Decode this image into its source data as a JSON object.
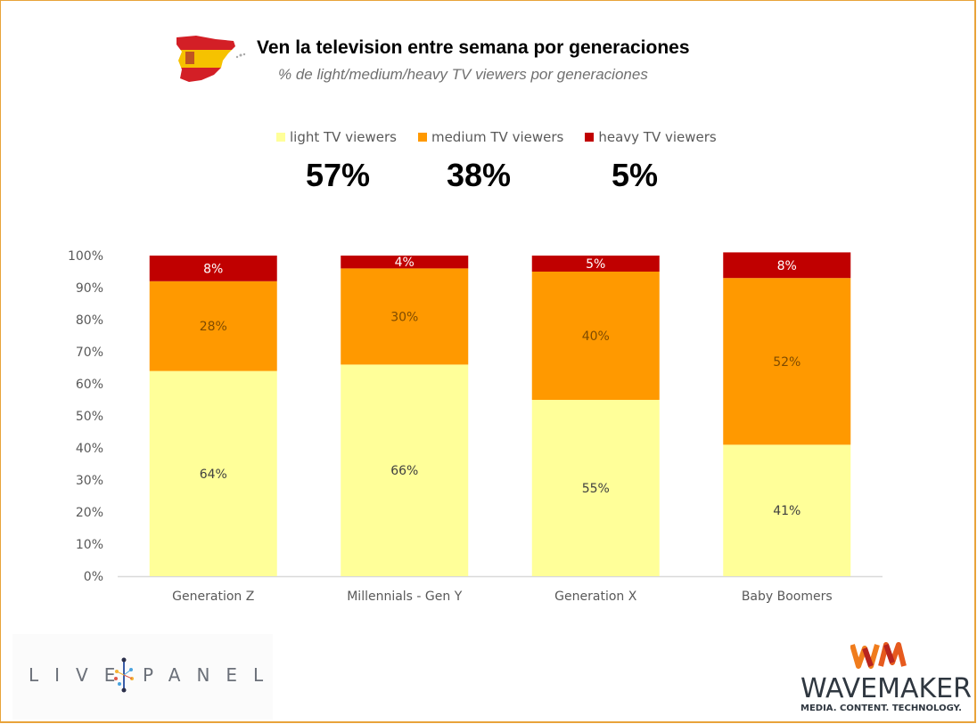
{
  "header": {
    "title": "Ven la television entre semana por generaciones",
    "subtitle": "% de light/medium/heavy TV viewers por generaciones",
    "flag_icon": "spain-map-flag-icon"
  },
  "legend": [
    {
      "label": "light TV viewers",
      "color": "#FFFF99"
    },
    {
      "label": "medium TV viewers",
      "color": "#FF9900"
    },
    {
      "label": "heavy TV viewers",
      "color": "#C00000"
    }
  ],
  "totals": [
    "57%",
    "38%",
    "5%"
  ],
  "chart_data": {
    "type": "bar",
    "stacked": true,
    "title": "Ven la television entre semana por generaciones",
    "subtitle": "% de light/medium/heavy TV viewers por generaciones",
    "xlabel": "",
    "ylabel": "",
    "ylim": [
      0,
      100
    ],
    "yticks": [
      "0%",
      "10%",
      "20%",
      "30%",
      "40%",
      "50%",
      "60%",
      "70%",
      "80%",
      "90%",
      "100%"
    ],
    "grid": false,
    "legend_position": "top-center",
    "categories": [
      "Generation Z",
      "Millennials - Gen Y",
      "Generation X",
      "Baby Boomers"
    ],
    "series": [
      {
        "name": "light TV viewers",
        "color": "#FFFF99",
        "label_color": "#404040",
        "values": [
          64,
          66,
          55,
          41
        ]
      },
      {
        "name": "medium TV viewers",
        "color": "#FF9900",
        "label_color": "#7f4b00",
        "values": [
          28,
          30,
          40,
          52
        ]
      },
      {
        "name": "heavy TV viewers",
        "color": "#C00000",
        "label_color": "#ffffff",
        "values": [
          8,
          4,
          5,
          8
        ]
      }
    ]
  },
  "footer": {
    "livepanel_left": "LIVE",
    "livepanel_right": "PANEL",
    "wavemaker_mark": "WM",
    "wavemaker_name": "WAVEMAKER",
    "wavemaker_tagline": "MEDIA. CONTENT. TECHNOLOGY."
  }
}
